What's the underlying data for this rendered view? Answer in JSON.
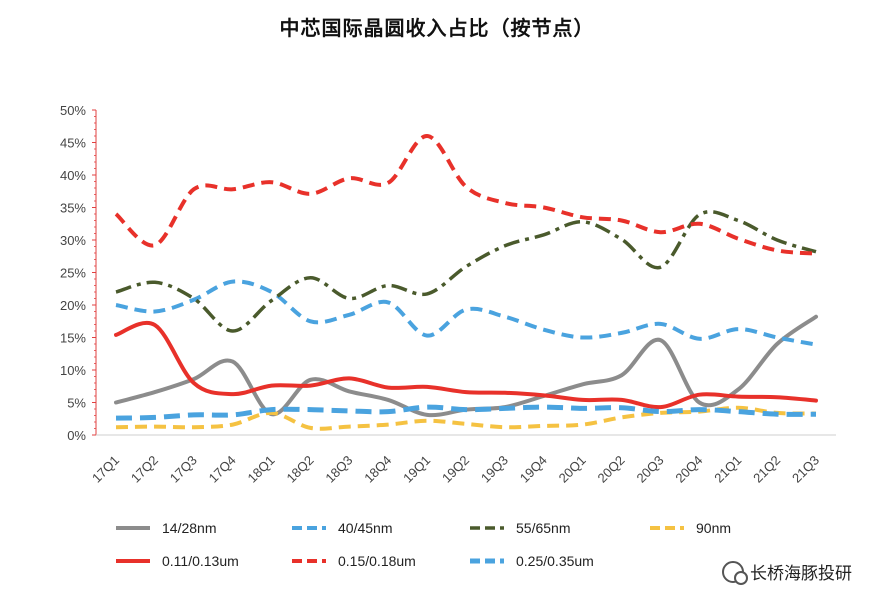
{
  "chart_data": {
    "type": "line",
    "title": "中芯国际晶圆收入占比（按节点）",
    "xlabel": "",
    "ylabel": "",
    "ylim": [
      0,
      50
    ],
    "yticks": [
      "0%",
      "5%",
      "10%",
      "15%",
      "20%",
      "25%",
      "30%",
      "35%",
      "40%",
      "45%",
      "50%"
    ],
    "grid": false,
    "legend_position": "bottom",
    "categories": [
      "17Q1",
      "17Q2",
      "17Q3",
      "17Q4",
      "18Q1",
      "18Q2",
      "18Q3",
      "18Q4",
      "19Q1",
      "19Q2",
      "19Q3",
      "19Q4",
      "20Q1",
      "20Q2",
      "20Q3",
      "20Q4",
      "21Q1",
      "21Q2",
      "21Q3"
    ],
    "series": [
      {
        "name": "14/28nm",
        "color": "#8c8c8c",
        "dash": "solid",
        "values": [
          5.0,
          6.6,
          8.6,
          11.3,
          3.2,
          8.5,
          6.7,
          5.4,
          3.1,
          3.9,
          4.3,
          6.0,
          7.8,
          9.2,
          14.6,
          5.0,
          7.0,
          14.0,
          18.2
        ]
      },
      {
        "name": "40/45nm",
        "color": "#4aa3df",
        "dash": "dash",
        "values": [
          20.0,
          19.0,
          20.8,
          23.6,
          22.0,
          17.5,
          18.5,
          20.4,
          15.3,
          19.3,
          18.2,
          16.2,
          15.0,
          15.7,
          17.1,
          14.8,
          16.3,
          15.0,
          13.9
        ]
      },
      {
        "name": "55/65nm",
        "color": "#4a5a2c",
        "dash": "dashdot",
        "values": [
          22.0,
          23.5,
          21.0,
          16.0,
          20.7,
          24.2,
          21.0,
          23.0,
          21.7,
          25.9,
          29.1,
          30.8,
          32.8,
          30.1,
          25.8,
          33.9,
          33.0,
          30.0,
          28.2
        ]
      },
      {
        "name": "90nm",
        "color": "#f5c242",
        "dash": "dash",
        "values": [
          1.2,
          1.3,
          1.2,
          1.6,
          3.4,
          1.1,
          1.3,
          1.6,
          2.2,
          1.7,
          1.2,
          1.4,
          1.6,
          2.7,
          3.4,
          3.6,
          4.2,
          3.4,
          3.3
        ]
      },
      {
        "name": "0.11/0.13um",
        "color": "#e8312a",
        "dash": "solid",
        "values": [
          15.4,
          16.9,
          8.0,
          6.3,
          7.6,
          7.6,
          8.7,
          7.3,
          7.4,
          6.6,
          6.5,
          6.1,
          5.4,
          5.4,
          4.3,
          6.2,
          5.9,
          5.8,
          5.3
        ]
      },
      {
        "name": "0.15/0.18um",
        "color": "#e8312a",
        "dash": "dash",
        "values": [
          34.0,
          29.2,
          37.8,
          37.8,
          38.9,
          37.1,
          39.5,
          38.8,
          46.0,
          38.2,
          35.7,
          35.0,
          33.5,
          33.0,
          31.2,
          32.5,
          30.2,
          28.4,
          27.9
        ]
      },
      {
        "name": "0.25/0.35um",
        "color": "#4aa3df",
        "dash": "bigdash",
        "values": [
          2.6,
          2.7,
          3.1,
          3.1,
          3.9,
          3.9,
          3.7,
          3.6,
          4.3,
          3.9,
          4.1,
          4.3,
          4.1,
          4.2,
          3.6,
          3.9,
          3.6,
          3.2,
          3.2
        ]
      }
    ]
  },
  "watermark": {
    "text": "长桥海豚投研",
    "icon": "wechat-icon"
  }
}
